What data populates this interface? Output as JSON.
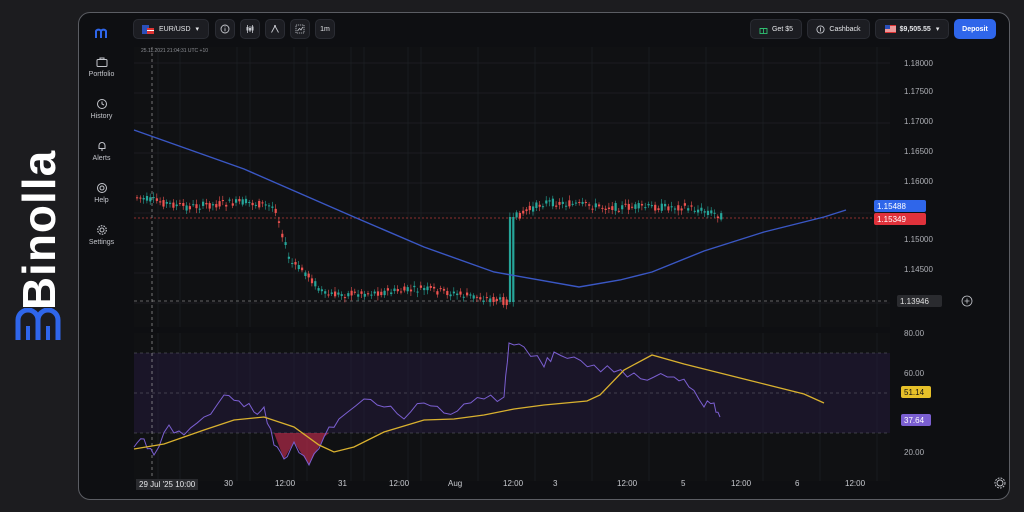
{
  "brand": {
    "name": "Binolla"
  },
  "sidebar": {
    "items": [
      {
        "label": "Portfolio",
        "icon": "briefcase-icon"
      },
      {
        "label": "History",
        "icon": "clock-icon"
      },
      {
        "label": "Alerts",
        "icon": "bell-icon"
      },
      {
        "label": "Help",
        "icon": "help-icon"
      },
      {
        "label": "Settings",
        "icon": "gear-icon"
      }
    ]
  },
  "topbar": {
    "asset": "EUR/USD",
    "timeframe": "1m",
    "bonus_label": "Get $5",
    "cashback_label": "Cashback",
    "balance": "$9,505.55",
    "deposit_label": "Deposit"
  },
  "chart_header": {
    "timestamp": "25.11.2021 21:04:31 UTC +10"
  },
  "colors": {
    "up": "#26a69a",
    "down": "#ef5350",
    "ma": "#3a57c4",
    "rsi": "#7b5fd1",
    "rsi_ma": "#d9b12f",
    "accent": "#2f66ea"
  },
  "price_axis": {
    "ticks": [
      "1.18000",
      "1.17500",
      "1.17000",
      "1.16500",
      "1.16000",
      "1.15500",
      "1.15000",
      "1.14500"
    ],
    "ma_value": "1.15488",
    "current_price": "1.15349",
    "crosshair_price": "1.13946"
  },
  "rsi_axis": {
    "ticks": [
      "80.00",
      "60.00",
      "40.00",
      "20.00"
    ],
    "rsi_ma_value": "51.14",
    "rsi_value": "37.64"
  },
  "time_axis": {
    "labels": [
      "30",
      "12:00",
      "31",
      "12:00",
      "Aug",
      "12:00",
      "3",
      "12:00",
      "5",
      "12:00",
      "6",
      "12:00"
    ],
    "crosshair_label": "29 Jul '25   10:00"
  },
  "chart_data": {
    "type": "candlestick",
    "series": [
      {
        "name": "EUR/USD",
        "close_approx": [
          1.158,
          1.157,
          1.156,
          1.155,
          1.156,
          1.157,
          1.156,
          1.148,
          1.147,
          1.142,
          1.141,
          1.143,
          1.144,
          1.143,
          1.142,
          1.143,
          1.141,
          1.14,
          1.158,
          1.159,
          1.158,
          1.157,
          1.158,
          1.157,
          1.156,
          1.153
        ]
      }
    ],
    "indicators": [
      "MA",
      "RSI",
      "RSI MA"
    ],
    "rsi_levels": [
      70,
      50,
      30
    ]
  }
}
